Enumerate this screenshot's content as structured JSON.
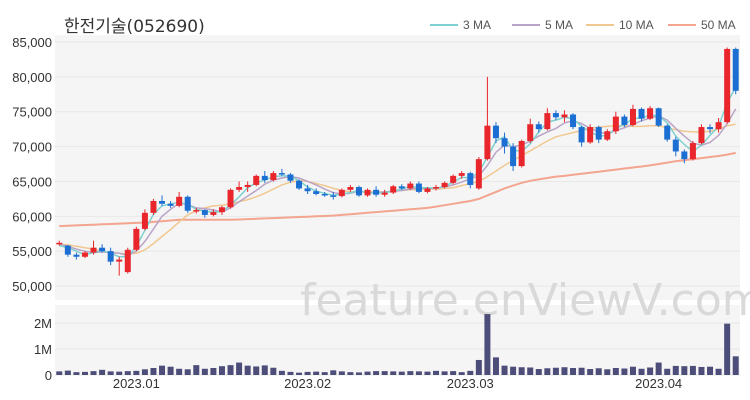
{
  "chart_data": {
    "type": "candlestick",
    "title": "한전기술(052690)",
    "watermark": "feature.enViewV.com",
    "ylim": [
      48000,
      86000
    ],
    "yticks": [
      50000,
      55000,
      60000,
      65000,
      70000,
      75000,
      80000,
      85000
    ],
    "ytick_labels": [
      "50,000",
      "55,000",
      "60,000",
      "65,000",
      "70,000",
      "75,000",
      "80,000",
      "85,000"
    ],
    "volume_ylim": [
      0,
      2700000
    ],
    "volume_yticks": [
      0,
      1000000,
      2000000
    ],
    "volume_ytick_labels": [
      "0",
      "1M",
      "2M"
    ],
    "xtick_labels": [
      {
        "index": 9,
        "label": "2023.01"
      },
      {
        "index": 29,
        "label": "2023.02"
      },
      {
        "index": 48,
        "label": "2023.03"
      },
      {
        "index": 70,
        "label": "2023.04"
      }
    ],
    "legend": [
      {
        "name": "3 MA",
        "color": "#7fd0d0"
      },
      {
        "name": "5 MA",
        "color": "#b9a4c8"
      },
      {
        "name": "10 MA",
        "color": "#f0c890"
      },
      {
        "name": "50 MA",
        "color": "#f3a58f"
      }
    ],
    "colors": {
      "up": "#e8262b",
      "down": "#1c6fd2",
      "volume": "#4d4d7a",
      "grid": "#e8e8e8",
      "panel": "#f5f5f5"
    },
    "candles": [
      [
        56000,
        56500,
        55800,
        56200
      ],
      [
        55800,
        55900,
        54200,
        54500
      ],
      [
        54500,
        54800,
        53800,
        54200
      ],
      [
        54200,
        55000,
        54000,
        54800
      ],
      [
        54800,
        56500,
        54500,
        55500
      ],
      [
        55500,
        56000,
        54800,
        55000
      ],
      [
        55000,
        55500,
        53000,
        53500
      ],
      [
        53500,
        54200,
        51500,
        53800
      ],
      [
        52000,
        55500,
        51800,
        55200
      ],
      [
        55200,
        58500,
        55000,
        58200
      ],
      [
        58200,
        61000,
        58000,
        60500
      ],
      [
        60500,
        62500,
        60200,
        62200
      ],
      [
        62200,
        63000,
        61500,
        61800
      ],
      [
        61800,
        62200,
        61200,
        61500
      ],
      [
        61500,
        63500,
        61300,
        62800
      ],
      [
        62800,
        63000,
        60500,
        60800
      ],
      [
        60800,
        61200,
        60400,
        60900
      ],
      [
        60900,
        61000,
        59800,
        60200
      ],
      [
        60200,
        61000,
        60000,
        60600
      ],
      [
        60600,
        61500,
        60200,
        61300
      ],
      [
        61300,
        64000,
        61100,
        63800
      ],
      [
        63800,
        65000,
        63500,
        64200
      ],
      [
        64200,
        65000,
        63500,
        64500
      ],
      [
        64500,
        66000,
        64300,
        65800
      ],
      [
        65800,
        66500,
        64800,
        65200
      ],
      [
        65200,
        66500,
        65000,
        66200
      ],
      [
        66200,
        66800,
        65800,
        66000
      ],
      [
        66000,
        66200,
        64800,
        65100
      ],
      [
        65100,
        65300,
        63800,
        64000
      ],
      [
        64000,
        64500,
        63200,
        63600
      ],
      [
        63600,
        64000,
        63000,
        63200
      ],
      [
        63200,
        63500,
        62800,
        63000
      ],
      [
        63000,
        63500,
        62400,
        62900
      ],
      [
        62900,
        64000,
        62700,
        63800
      ],
      [
        63800,
        64500,
        63500,
        64200
      ],
      [
        64200,
        64400,
        62800,
        63000
      ],
      [
        63000,
        64000,
        62800,
        63800
      ],
      [
        63800,
        64300,
        62800,
        63100
      ],
      [
        63100,
        63800,
        62800,
        63400
      ],
      [
        63400,
        64500,
        63200,
        64300
      ],
      [
        64300,
        64600,
        63800,
        64000
      ],
      [
        64000,
        65000,
        63800,
        64700
      ],
      [
        64700,
        65000,
        63300,
        63500
      ],
      [
        63500,
        64200,
        63300,
        64000
      ],
      [
        64000,
        64500,
        63700,
        64200
      ],
      [
        64200,
        65000,
        64000,
        64800
      ],
      [
        64800,
        66000,
        64600,
        65800
      ],
      [
        65800,
        66500,
        65400,
        66200
      ],
      [
        66200,
        66400,
        64000,
        64500
      ],
      [
        64000,
        68500,
        63800,
        68200
      ],
      [
        68200,
        80000,
        68000,
        73000
      ],
      [
        73000,
        73500,
        70500,
        71200
      ],
      [
        71200,
        72000,
        69000,
        70000
      ],
      [
        70000,
        70500,
        66500,
        67200
      ],
      [
        67200,
        71000,
        67000,
        70800
      ],
      [
        70800,
        74000,
        70500,
        73200
      ],
      [
        73200,
        73600,
        72000,
        72500
      ],
      [
        72500,
        75500,
        72300,
        74800
      ],
      [
        74800,
        75200,
        73800,
        74200
      ],
      [
        74200,
        75200,
        73500,
        74600
      ],
      [
        74600,
        74800,
        72500,
        72800
      ],
      [
        72800,
        73000,
        70000,
        70600
      ],
      [
        70600,
        73200,
        70400,
        72800
      ],
      [
        72800,
        73000,
        70500,
        71000
      ],
      [
        71000,
        72500,
        70800,
        72200
      ],
      [
        72200,
        75000,
        71800,
        74300
      ],
      [
        74300,
        74600,
        72800,
        73100
      ],
      [
        73100,
        76000,
        72900,
        75400
      ],
      [
        75400,
        75600,
        73600,
        74000
      ],
      [
        74000,
        75800,
        73800,
        75500
      ],
      [
        75500,
        75600,
        72800,
        73000
      ],
      [
        73000,
        73200,
        70700,
        71000
      ],
      [
        71000,
        71400,
        68600,
        69300
      ],
      [
        69300,
        69600,
        67600,
        68200
      ],
      [
        68200,
        70800,
        68000,
        70500
      ],
      [
        70500,
        73200,
        70300,
        72800
      ],
      [
        72800,
        73200,
        71900,
        72500
      ],
      [
        72500,
        74100,
        72000,
        73500
      ],
      [
        73500,
        84200,
        73300,
        84000
      ],
      [
        84000,
        84200,
        77500,
        78000
      ]
    ],
    "ma3": [
      55800,
      55500,
      55000,
      54500,
      54800,
      55100,
      54700,
      54200,
      54200,
      55700,
      58000,
      60300,
      61500,
      61800,
      62000,
      61700,
      61000,
      60700,
      60600,
      60700,
      61600,
      62800,
      64100,
      64800,
      65200,
      65700,
      65800,
      65800,
      65100,
      64200,
      63600,
      63300,
      63000,
      63200,
      63400,
      63700,
      63400,
      63300,
      63400,
      63600,
      63900,
      64300,
      64100,
      64100,
      64000,
      64300,
      64900,
      65600,
      65500,
      66300,
      68500,
      70800,
      71400,
      69500,
      69300,
      70400,
      72100,
      73500,
      73800,
      74200,
      74000,
      72900,
      72100,
      71500,
      71600,
      72600,
      73200,
      74000,
      74100,
      74500,
      74400,
      73400,
      71500,
      70300,
      69300,
      70200,
      71600,
      72900,
      76300,
      78500
    ],
    "ma5": [
      56000,
      55700,
      55300,
      55000,
      54800,
      54900,
      54800,
      54700,
      54400,
      55000,
      56400,
      58200,
      60000,
      61000,
      61900,
      61700,
      61200,
      61100,
      60900,
      60600,
      61200,
      62100,
      62900,
      63700,
      64600,
      65200,
      65500,
      65700,
      65500,
      65000,
      64500,
      63900,
      63400,
      63200,
      63300,
      63600,
      63400,
      63400,
      63500,
      63600,
      63700,
      63900,
      64000,
      64000,
      64000,
      64200,
      64500,
      64900,
      65400,
      65800,
      67300,
      69200,
      70200,
      70000,
      70200,
      70800,
      71500,
      72100,
      72600,
      73400,
      73700,
      73300,
      72600,
      72100,
      71800,
      72300,
      72700,
      73200,
      73700,
      74100,
      74400,
      73800,
      72600,
      71500,
      70500,
      70200,
      70600,
      71600,
      73300,
      75400
    ],
    "ma10": [
      56000,
      55900,
      55700,
      55500,
      55300,
      55000,
      54800,
      54700,
      54600,
      54700,
      55200,
      56100,
      57100,
      58100,
      59200,
      60200,
      60800,
      61200,
      61500,
      61600,
      61800,
      62100,
      62400,
      62800,
      63300,
      63900,
      64500,
      64900,
      65100,
      65000,
      64700,
      64400,
      64000,
      63700,
      63500,
      63500,
      63500,
      63500,
      63500,
      63600,
      63700,
      63800,
      63800,
      63900,
      63900,
      64000,
      64100,
      64400,
      64700,
      65000,
      65700,
      66500,
      67300,
      68000,
      68700,
      69400,
      70100,
      70800,
      71400,
      71700,
      72000,
      72300,
      72600,
      72800,
      72900,
      73000,
      73000,
      72900,
      72900,
      73000,
      73000,
      72700,
      72400,
      72200,
      72100,
      72100,
      72200,
      72500,
      73000,
      73200
    ],
    "ma50": [
      58600,
      58650,
      58700,
      58750,
      58800,
      58850,
      58900,
      58950,
      59000,
      59050,
      59100,
      59200,
      59300,
      59400,
      59500,
      59500,
      59500,
      59500,
      59500,
      59500,
      59500,
      59550,
      59600,
      59650,
      59700,
      59750,
      59800,
      59850,
      59900,
      59950,
      60000,
      60050,
      60100,
      60200,
      60300,
      60400,
      60500,
      60600,
      60700,
      60800,
      60900,
      61000,
      61100,
      61200,
      61400,
      61600,
      61800,
      62000,
      62200,
      62500,
      63000,
      63500,
      64000,
      64400,
      64800,
      65100,
      65300,
      65500,
      65700,
      65800,
      65950,
      66100,
      66250,
      66400,
      66550,
      66700,
      66850,
      67000,
      67150,
      67300,
      67500,
      67700,
      67900,
      68050,
      68200,
      68350,
      68500,
      68650,
      68850,
      69100
    ],
    "volume": [
      140000,
      170000,
      110000,
      120000,
      150000,
      200000,
      140000,
      130000,
      150000,
      160000,
      220000,
      270000,
      360000,
      320000,
      240000,
      220000,
      380000,
      240000,
      270000,
      340000,
      380000,
      480000,
      360000,
      330000,
      370000,
      280000,
      160000,
      120000,
      90000,
      120000,
      130000,
      110000,
      180000,
      140000,
      110000,
      100000,
      130000,
      150000,
      150000,
      140000,
      130000,
      150000,
      140000,
      130000,
      160000,
      140000,
      150000,
      110000,
      160000,
      580000,
      2350000,
      680000,
      360000,
      320000,
      300000,
      290000,
      230000,
      260000,
      280000,
      300000,
      270000,
      280000,
      230000,
      260000,
      220000,
      270000,
      250000,
      320000,
      240000,
      290000,
      480000,
      240000,
      350000,
      340000,
      350000,
      310000,
      320000,
      240000,
      1980000,
      720000
    ]
  }
}
